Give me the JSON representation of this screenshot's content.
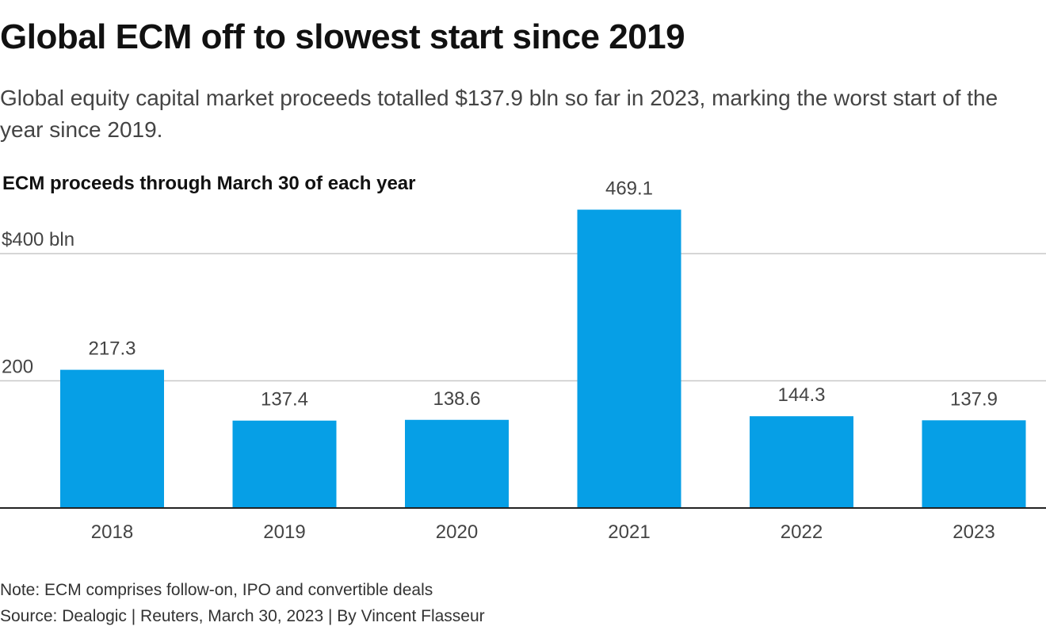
{
  "title": "Global ECM off to slowest start since 2019",
  "subtitle": "Global equity capital market proceeds totalled $137.9 bln so far in 2023, marking the worst start of the year since 2019.",
  "note": "Note: ECM comprises follow-on, IPO and convertible deals",
  "source": "Source: Dealogic | Reuters, March 30, 2023 | By Vincent Flasseur",
  "colors": {
    "bar": "#069fe6",
    "grid": "#c8c8c8",
    "baseline": "#222222"
  },
  "chart_data": {
    "type": "bar",
    "title": "ECM proceeds through March 30 of each year",
    "xlabel": "",
    "ylabel": "",
    "categories": [
      "2018",
      "2019",
      "2020",
      "2021",
      "2022",
      "2023"
    ],
    "values": [
      217.3,
      137.4,
      138.6,
      469.1,
      144.3,
      137.9
    ],
    "value_labels": [
      "217.3",
      "137.4",
      "138.6",
      "469.1",
      "144.3",
      "137.9"
    ],
    "ylim": [
      0,
      469.1
    ],
    "yticks": [
      200,
      400
    ],
    "ytick_labels": [
      "200",
      "$400 bln"
    ],
    "grid": true,
    "legend": "none"
  }
}
